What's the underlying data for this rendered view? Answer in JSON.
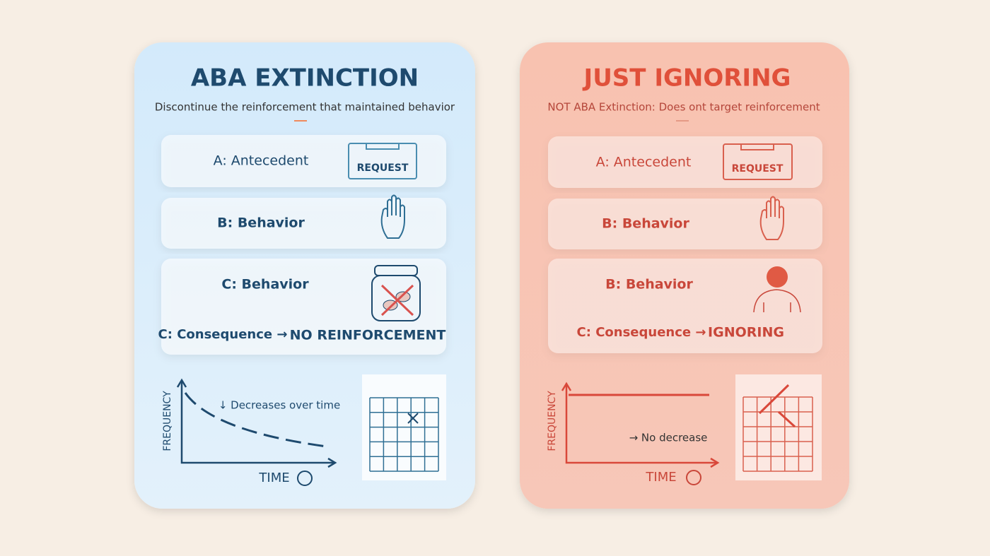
{
  "cards": [
    {
      "title": "ABA EXTINCTION",
      "subtitle": "Discontinue the reinforcement that maintained behavior",
      "rows": [
        {
          "label": "A: Antecedent",
          "icon_text": "REQUEST"
        },
        {
          "label": "B: Behavior"
        },
        {
          "label": "C: Behavior",
          "consequence": "C: Consequence →",
          "result": "NO REINFORCEMENT"
        }
      ],
      "graph": {
        "y_label": "FREQUENCY",
        "x_label": "TIME",
        "note": "↓ Decreases over time"
      }
    },
    {
      "title": "JUST IGNORING",
      "subtitle": "NOT ABA Extinction: Does ont target reinforcement",
      "rows": [
        {
          "label": "A: Antecedent",
          "icon_text": "REQUEST"
        },
        {
          "label": "B: Behavior"
        },
        {
          "label": "B: Behavior",
          "consequence": "C: Consequence →",
          "result": "IGNORING"
        }
      ],
      "graph": {
        "y_label": "FREQUENCY",
        "x_label": "TIME",
        "note": "→ No decrease"
      }
    }
  ]
}
